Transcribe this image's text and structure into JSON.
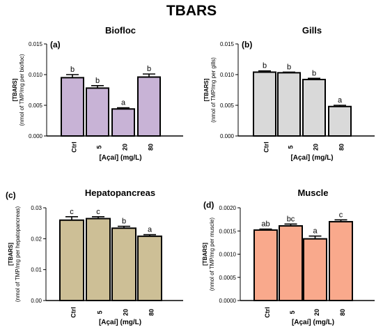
{
  "figure_title": "TBARS",
  "chart_data": [
    {
      "type": "bar",
      "panel": "(a)",
      "title": "Biofloc",
      "categories": [
        "Ctrl",
        "5",
        "20",
        "80"
      ],
      "values": [
        0.0095,
        0.0078,
        0.0044,
        0.0096
      ],
      "errors": [
        0.0005,
        0.0004,
        0.0002,
        0.0005
      ],
      "significance": [
        "b",
        "b",
        "a",
        "b"
      ],
      "color": "#c8b3d6",
      "ylim": [
        0,
        0.015
      ],
      "yticks": [
        "0.000",
        "0.005",
        "0.010",
        "0.015"
      ],
      "ylabel_line1": "[TBARS]",
      "ylabel_line2": "(nmol of TMP/mg per biofloc)",
      "xlabel": "[Açaí] (mg/L)"
    },
    {
      "type": "bar",
      "panel": "(b)",
      "title": "Gills",
      "categories": [
        "Ctrl",
        "5",
        "20",
        "80"
      ],
      "values": [
        0.0104,
        0.0103,
        0.0092,
        0.0048
      ],
      "errors": [
        0.0002,
        0.0001,
        0.0002,
        0.0002
      ],
      "significance": [
        "b",
        "b",
        "b",
        "a"
      ],
      "color": "#d9d9d9",
      "ylim": [
        0,
        0.015
      ],
      "yticks": [
        "0.000",
        "0.005",
        "0.010",
        "0.015"
      ],
      "ylabel_line1": "[TBARS]",
      "ylabel_line2": "(nmol of TMP/mg per gills)",
      "xlabel": "[Açaí] (mg/L)"
    },
    {
      "type": "bar",
      "panel": "(c)",
      "title": "Hepatopancreas",
      "categories": [
        "Ctrl",
        "5",
        "20",
        "80"
      ],
      "values": [
        0.026,
        0.0265,
        0.0234,
        0.0208
      ],
      "errors": [
        0.0011,
        0.0006,
        0.0006,
        0.0005
      ],
      "significance": [
        "c",
        "c",
        "b",
        "a"
      ],
      "color": "#cdbf96",
      "ylim": [
        0,
        0.03
      ],
      "yticks": [
        "0.00",
        "0.01",
        "0.02",
        "0.03"
      ],
      "ylabel_line1": "[TBARS]",
      "ylabel_line2": "(nmol of TMP/mg per hepatopancreas)",
      "xlabel": "[Açaí] (mg/L)"
    },
    {
      "type": "bar",
      "panel": "(d)",
      "title": "Muscle",
      "categories": [
        "Ctrl",
        "5",
        "20",
        "80"
      ],
      "values": [
        0.00152,
        0.00161,
        0.00133,
        0.0017
      ],
      "errors": [
        2e-05,
        4e-05,
        6e-05,
        4e-05
      ],
      "significance": [
        "ab",
        "bc",
        "a",
        "c"
      ],
      "color": "#f9a98c",
      "ylim": [
        0,
        0.002
      ],
      "yticks": [
        "0.0000",
        "0.0005",
        "0.0010",
        "0.0015",
        "0.0020"
      ],
      "ylabel_line1": "[TBARS]",
      "ylabel_line2": "(nmol of TMP/mg per muscle)",
      "xlabel": "[Açaí] (mg/L)"
    }
  ]
}
